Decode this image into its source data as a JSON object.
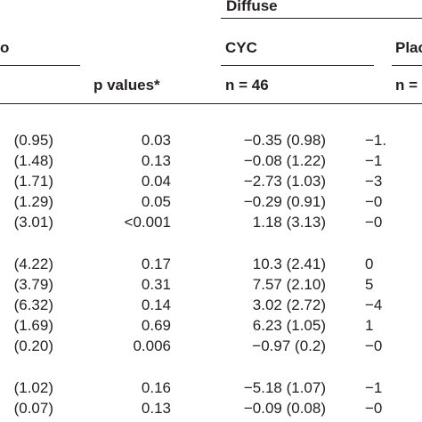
{
  "header": {
    "group_label": "Diffuse",
    "left_group_fragment": "o",
    "pvalues_label": "p values*",
    "cyc_label": "CYC",
    "placebo_fragment": "Plac",
    "cyc_n": "n = 46",
    "placebo_n_fragment": "n = 4"
  },
  "rows": [
    {
      "c1": "(0.95)",
      "p": "0.03",
      "cyc": "−0.35 (0.98)",
      "pl": "−1."
    },
    {
      "c1": "(1.48)",
      "p": "0.13",
      "cyc": "−0.08 (1.22)",
      "pl": "−1"
    },
    {
      "c1": "(1.71)",
      "p": "0.04",
      "cyc": "−2.73 (1.03)",
      "pl": "−3"
    },
    {
      "c1": "(1.29)",
      "p": "0.05",
      "cyc": "−0.29 (0.91)",
      "pl": "−0"
    },
    {
      "c1": "(3.01)",
      "p": "<0.001",
      "cyc": "1.18 (3.13)",
      "pl": "−0"
    },
    {
      "c1": "(4.22)",
      "p": "0.17",
      "cyc": "10.3 (2.41)",
      "pl": "0"
    },
    {
      "c1": "(3.79)",
      "p": "0.31",
      "cyc": "7.57 (2.10)",
      "pl": "5"
    },
    {
      "c1": "(6.32)",
      "p": "0.14",
      "cyc": "3.02 (2.72)",
      "pl": "−4"
    },
    {
      "c1": "(1.69)",
      "p": "0.69",
      "cyc": "6.23 (1.05)",
      "pl": "1"
    },
    {
      "c1": "(0.20)",
      "p": "0.006",
      "cyc": "−0.97 (0.2)",
      "pl": "−0"
    },
    {
      "c1": "(1.02)",
      "p": "0.16",
      "cyc": "−5.18 (1.07)",
      "pl": "−1"
    },
    {
      "c1": "(0.07)",
      "p": "0.13",
      "cyc": "−0.09 (0.08)",
      "pl": "−0"
    }
  ]
}
